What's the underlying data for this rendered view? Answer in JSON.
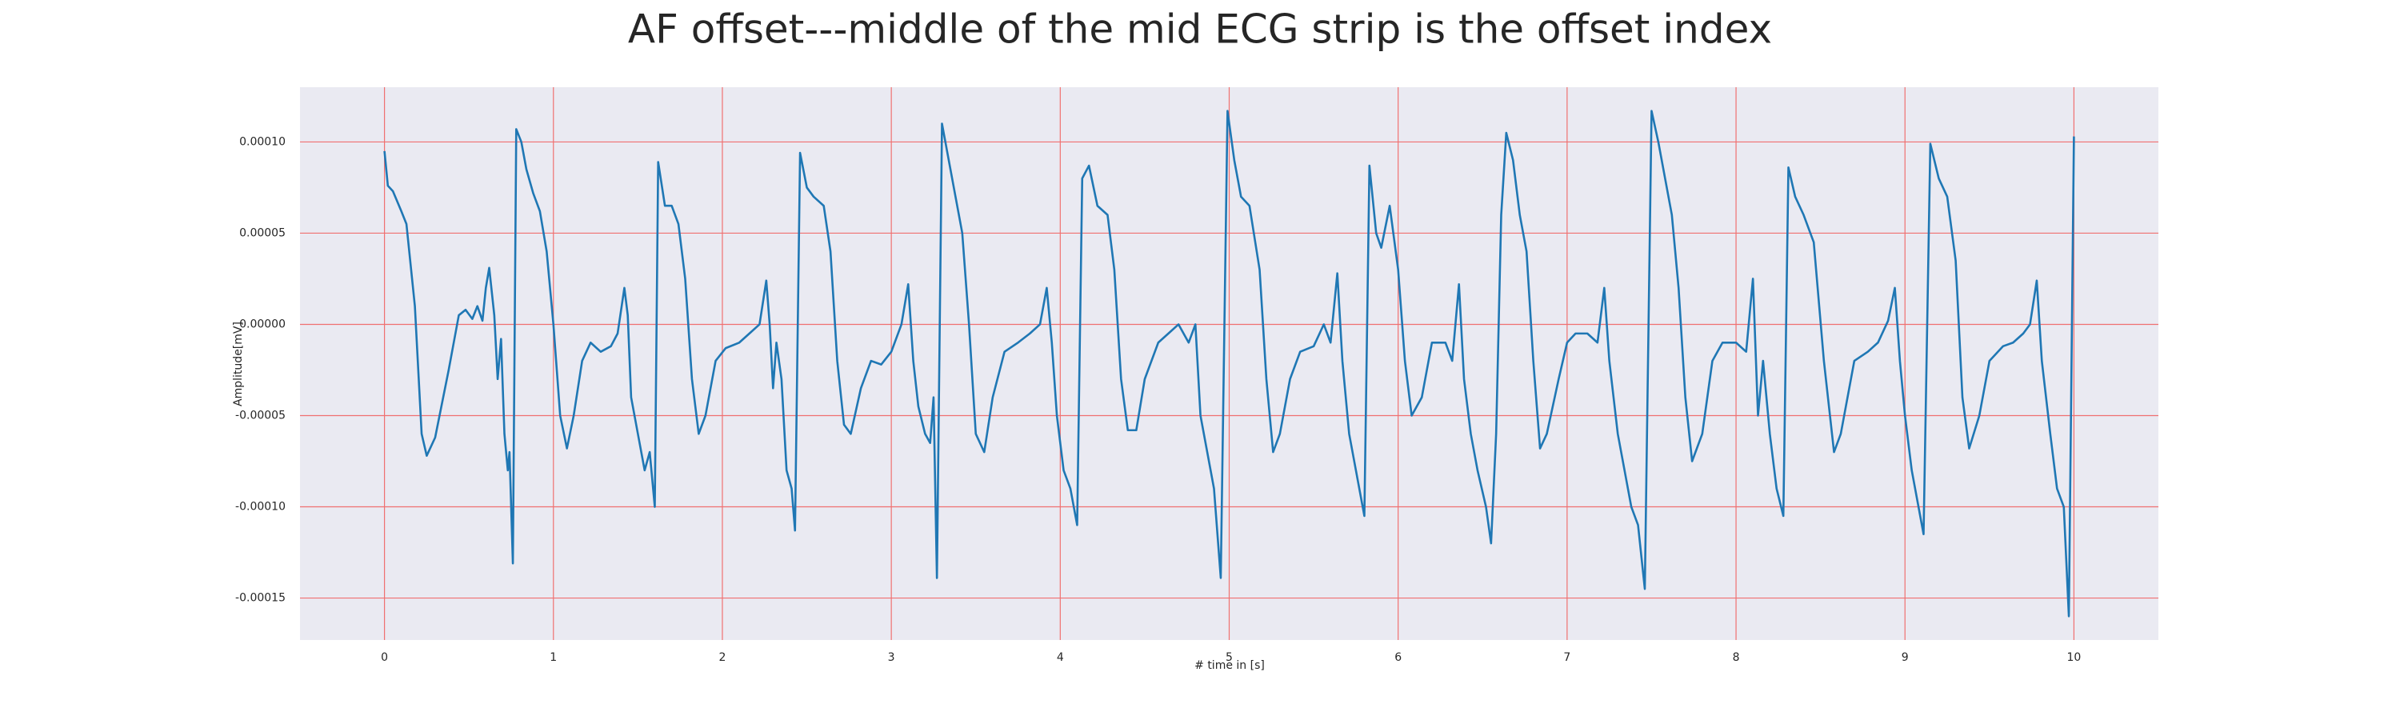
{
  "chart_data": {
    "type": "line",
    "title": "AF offset---middle of the mid ECG strip is the offset index",
    "xlabel": "# time in [s]",
    "ylabel": "Amplitude[mV]",
    "color": "#1f77b4",
    "grid": true,
    "grid_color": "#f07070",
    "background": "#eaeaf2",
    "xlim": [
      -0.5,
      10.5
    ],
    "ylim": [
      -0.000173,
      0.00013
    ],
    "xticks": [
      0,
      1,
      2,
      3,
      4,
      5,
      6,
      7,
      8,
      9,
      10
    ],
    "yticks": [
      {
        "value": -0.00015,
        "label": "-0.00015"
      },
      {
        "value": -0.0001,
        "label": "-0.00010"
      },
      {
        "value": -5e-05,
        "label": "-0.00005"
      },
      {
        "value": 0,
        "label": "0.00000"
      },
      {
        "value": 5e-05,
        "label": "0.00005"
      },
      {
        "value": 0.0001,
        "label": "0.00010"
      }
    ],
    "x": [
      0,
      0.02,
      0.05,
      0.1,
      0.13,
      0.18,
      0.22,
      0.25,
      0.3,
      0.38,
      0.44,
      0.48,
      0.52,
      0.55,
      0.58,
      0.6,
      0.62,
      0.65,
      0.67,
      0.69,
      0.71,
      0.73,
      0.74,
      0.76,
      0.78,
      0.81,
      0.84,
      0.88,
      0.92,
      0.96,
      1.0,
      1.04,
      1.08,
      1.12,
      1.17,
      1.22,
      1.28,
      1.34,
      1.38,
      1.42,
      1.44,
      1.46,
      1.5,
      1.54,
      1.57,
      1.6,
      1.62,
      1.66,
      1.7,
      1.74,
      1.78,
      1.82,
      1.86,
      1.9,
      1.96,
      2.02,
      2.1,
      2.16,
      2.22,
      2.26,
      2.28,
      2.3,
      2.32,
      2.35,
      2.38,
      2.41,
      2.43,
      2.46,
      2.5,
      2.54,
      2.6,
      2.64,
      2.68,
      2.72,
      2.76,
      2.82,
      2.88,
      2.94,
      3.0,
      3.06,
      3.1,
      3.13,
      3.16,
      3.2,
      3.23,
      3.25,
      3.27,
      3.3,
      3.34,
      3.38,
      3.42,
      3.46,
      3.5,
      3.55,
      3.6,
      3.67,
      3.75,
      3.82,
      3.88,
      3.92,
      3.95,
      3.98,
      4.02,
      4.06,
      4.1,
      4.13,
      4.17,
      4.22,
      4.28,
      4.32,
      4.36,
      4.4,
      4.45,
      4.5,
      4.58,
      4.64,
      4.7,
      4.76,
      4.8,
      4.83,
      4.87,
      4.91,
      4.95,
      4.99,
      5.03,
      5.07,
      5.12,
      5.18,
      5.22,
      5.26,
      5.3,
      5.36,
      5.42,
      5.5,
      5.56,
      5.6,
      5.64,
      5.67,
      5.71,
      5.75,
      5.8,
      5.83,
      5.87,
      5.9,
      5.95,
      6.0,
      6.04,
      6.08,
      6.14,
      6.2,
      6.28,
      6.32,
      6.36,
      6.39,
      6.43,
      6.47,
      6.52,
      6.55,
      6.58,
      6.61,
      6.64,
      6.68,
      6.72,
      6.76,
      6.8,
      6.84,
      6.88,
      6.95,
      7.0,
      7.05,
      7.12,
      7.18,
      7.22,
      7.25,
      7.3,
      7.34,
      7.38,
      7.42,
      7.46,
      7.5,
      7.54,
      7.58,
      7.62,
      7.66,
      7.7,
      7.74,
      7.8,
      7.86,
      7.92,
      8.0,
      8.06,
      8.1,
      8.13,
      8.16,
      8.2,
      8.24,
      8.28,
      8.31,
      8.35,
      8.4,
      8.46,
      8.52,
      8.58,
      8.62,
      8.7,
      8.78,
      8.84,
      8.9,
      8.94,
      8.97,
      9.0,
      9.04,
      9.08,
      9.11,
      9.15,
      9.2,
      9.25,
      9.3,
      9.34,
      9.38,
      9.44,
      9.5,
      9.58,
      9.64,
      9.7,
      9.74,
      9.78,
      9.81,
      9.86,
      9.9,
      9.94,
      9.97,
      10.0
    ],
    "values": [
      9.5e-05,
      7.6e-05,
      7.3e-05,
      6.2e-05,
      5.5e-05,
      1e-05,
      -6e-05,
      -7.2e-05,
      -6.2e-05,
      -2.5e-05,
      5e-06,
      8e-06,
      3e-06,
      1e-05,
      2e-06,
      2e-05,
      3.1e-05,
      5e-06,
      -3e-05,
      -8e-06,
      -6e-05,
      -8e-05,
      -7e-05,
      -0.000131,
      0.000107,
      0.0001,
      8.5e-05,
      7.2e-05,
      6.2e-05,
      4e-05,
      0,
      -5e-05,
      -6.8e-05,
      -5e-05,
      -2e-05,
      -1e-05,
      -1.5e-05,
      -1.2e-05,
      -5e-06,
      2e-05,
      5e-06,
      -4e-05,
      -6e-05,
      -8e-05,
      -7e-05,
      -0.0001,
      8.9e-05,
      6.5e-05,
      6.5e-05,
      5.5e-05,
      2.5e-05,
      -3e-05,
      -6e-05,
      -5e-05,
      -2e-05,
      -1.3e-05,
      -1e-05,
      -5e-06,
      0,
      2.4e-05,
      0,
      -3.5e-05,
      -1e-05,
      -3e-05,
      -8e-05,
      -9e-05,
      -0.000113,
      9.4e-05,
      7.5e-05,
      7e-05,
      6.5e-05,
      4e-05,
      -2e-05,
      -5.5e-05,
      -6e-05,
      -3.5e-05,
      -2e-05,
      -2.2e-05,
      -1.5e-05,
      0,
      2.2e-05,
      -2e-05,
      -4.5e-05,
      -6e-05,
      -6.5e-05,
      -4e-05,
      -0.000139,
      0.00011,
      9e-05,
      7e-05,
      5e-05,
      0,
      -6e-05,
      -7e-05,
      -4e-05,
      -1.5e-05,
      -1e-05,
      -5e-06,
      0,
      2e-05,
      -1e-05,
      -5e-05,
      -8e-05,
      -9e-05,
      -0.00011,
      8e-05,
      8.7e-05,
      6.5e-05,
      6e-05,
      3e-05,
      -3e-05,
      -5.8e-05,
      -5.8e-05,
      -3e-05,
      -1e-05,
      -5e-06,
      0,
      -1e-05,
      0,
      -5e-05,
      -7e-05,
      -9e-05,
      -0.000139,
      0.000117,
      9e-05,
      7e-05,
      6.5e-05,
      3e-05,
      -3e-05,
      -7e-05,
      -6e-05,
      -3e-05,
      -1.5e-05,
      -1.2e-05,
      0,
      -1e-05,
      2.8e-05,
      -2e-05,
      -6e-05,
      -8e-05,
      -0.000105,
      8.7e-05,
      5e-05,
      4.2e-05,
      6.5e-05,
      3e-05,
      -2e-05,
      -5e-05,
      -4e-05,
      -1e-05,
      -1e-05,
      -2e-05,
      2.2e-05,
      -3e-05,
      -6e-05,
      -8e-05,
      -0.0001,
      -0.00012,
      -6e-05,
      6e-05,
      0.000105,
      9e-05,
      6e-05,
      4e-05,
      -2e-05,
      -6.8e-05,
      -6e-05,
      -3e-05,
      -1e-05,
      -5e-06,
      -5e-06,
      -1e-05,
      2e-05,
      -2e-05,
      -6e-05,
      -8e-05,
      -0.0001,
      -0.00011,
      -0.000145,
      0.000117,
      0.0001,
      8e-05,
      6e-05,
      2e-05,
      -4e-05,
      -7.5e-05,
      -6e-05,
      -2e-05,
      -1e-05,
      -1e-05,
      -1.5e-05,
      2.5e-05,
      -5e-05,
      -2e-05,
      -6e-05,
      -9e-05,
      -0.000105,
      8.6e-05,
      7e-05,
      6e-05,
      4.5e-05,
      -2e-05,
      -7e-05,
      -6e-05,
      -2e-05,
      -1.5e-05,
      -1e-05,
      2e-06,
      2e-05,
      -2e-05,
      -5e-05,
      -8e-05,
      -0.0001,
      -0.000115,
      9.9e-05,
      8e-05,
      7e-05,
      3.5e-05,
      -4e-05,
      -6.8e-05,
      -5e-05,
      -2e-05,
      -1.2e-05,
      -1e-05,
      -5e-06,
      0,
      2.4e-05,
      -2e-05,
      -6e-05,
      -9e-05,
      -0.0001,
      -0.00016,
      0.000103
    ]
  }
}
